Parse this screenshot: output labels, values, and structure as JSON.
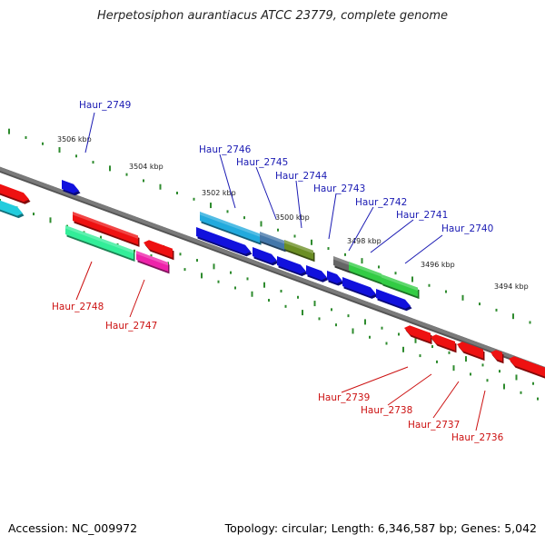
{
  "title": "Herpetosiphon aurantiacus ATCC 23779, complete genome",
  "footer": {
    "accession": "Accession: NC_009972",
    "summary": "Topology: circular; Length: 6,346,587 bp; Genes: 5,042"
  },
  "colors": {
    "backbone": "#7a7a7a",
    "tick_dots": "#2e8b2e",
    "top_strand_label": "#1a1ab3",
    "bottom_strand_label": "#cc1111"
  },
  "ticks": [
    "3506 kbp",
    "3504 kbp",
    "3502 kbp",
    "3500 kbp",
    "3498 kbp",
    "3496 kbp",
    "3494 kbp"
  ],
  "top_genes": [
    "Haur_2749",
    "Haur_2746",
    "Haur_2745",
    "Haur_2744",
    "Haur_2743",
    "Haur_2742",
    "Haur_2741",
    "Haur_2740"
  ],
  "bottom_genes": [
    "Haur_2748",
    "Haur_2747",
    "Haur_2739",
    "Haur_2738",
    "Haur_2737",
    "Haur_2736"
  ]
}
